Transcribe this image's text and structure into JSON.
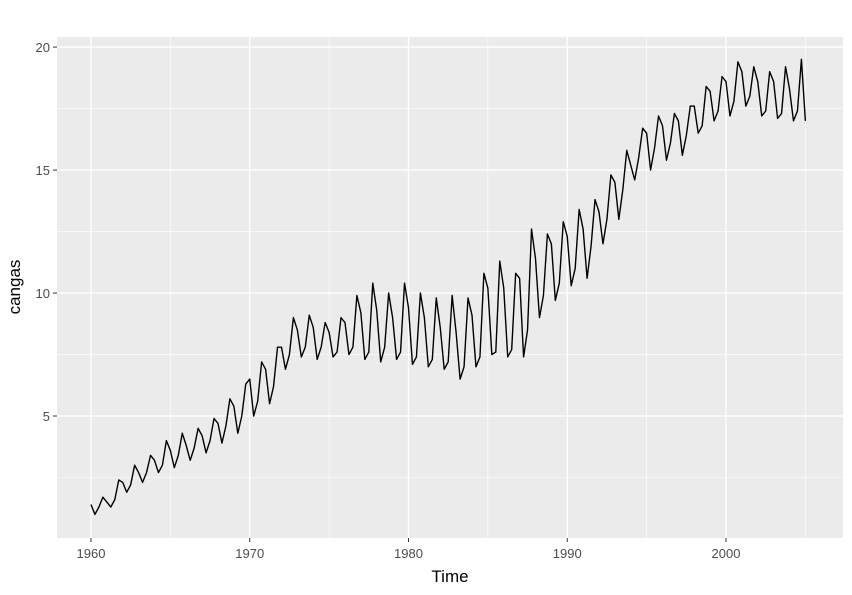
{
  "chart_data": {
    "type": "line",
    "xlabel": "Time",
    "ylabel": "cangas",
    "x": [
      1960,
      1960.25,
      1960.5,
      1960.75,
      1961,
      1961.25,
      1961.5,
      1961.75,
      1962,
      1962.25,
      1962.5,
      1962.75,
      1963,
      1963.25,
      1963.5,
      1963.75,
      1964,
      1964.25,
      1964.5,
      1964.75,
      1965,
      1965.25,
      1965.5,
      1965.75,
      1966,
      1966.25,
      1966.5,
      1966.75,
      1967,
      1967.25,
      1967.5,
      1967.75,
      1968,
      1968.25,
      1968.5,
      1968.75,
      1969,
      1969.25,
      1969.5,
      1969.75,
      1970,
      1970.25,
      1970.5,
      1970.75,
      1971,
      1971.25,
      1971.5,
      1971.75,
      1972,
      1972.25,
      1972.5,
      1972.75,
      1973,
      1973.25,
      1973.5,
      1973.75,
      1974,
      1974.25,
      1974.5,
      1974.75,
      1975,
      1975.25,
      1975.5,
      1975.75,
      1976,
      1976.25,
      1976.5,
      1976.75,
      1977,
      1977.25,
      1977.5,
      1977.75,
      1978,
      1978.25,
      1978.5,
      1978.75,
      1979,
      1979.25,
      1979.5,
      1979.75,
      1980,
      1980.25,
      1980.5,
      1980.75,
      1981,
      1981.25,
      1981.5,
      1981.75,
      1982,
      1982.25,
      1982.5,
      1982.75,
      1983,
      1983.25,
      1983.5,
      1983.75,
      1984,
      1984.25,
      1984.5,
      1984.75,
      1985,
      1985.25,
      1985.5,
      1985.75,
      1986,
      1986.25,
      1986.5,
      1986.75,
      1987,
      1987.25,
      1987.5,
      1987.75,
      1988,
      1988.25,
      1988.5,
      1988.75,
      1989,
      1989.25,
      1989.5,
      1989.75,
      1990,
      1990.25,
      1990.5,
      1990.75,
      1991,
      1991.25,
      1991.5,
      1991.75,
      1992,
      1992.25,
      1992.5,
      1992.75,
      1993,
      1993.25,
      1993.5,
      1993.75,
      1994,
      1994.25,
      1994.5,
      1994.75,
      1995,
      1995.25,
      1995.5,
      1995.75,
      1996,
      1996.25,
      1996.5,
      1996.75,
      1997,
      1997.25,
      1997.5,
      1997.75,
      1998,
      1998.25,
      1998.5,
      1998.75,
      1999,
      1999.25,
      1999.5,
      1999.75,
      2000,
      2000.25,
      2000.5,
      2000.75,
      2001,
      2001.25,
      2001.5,
      2001.75,
      2002,
      2002.25,
      2002.5,
      2002.75,
      2003,
      2003.25,
      2003.5,
      2003.75,
      2004,
      2004.25,
      2004.5,
      2004.75,
      2005
    ],
    "series": [
      {
        "name": "cangas",
        "color": "#000000",
        "values": [
          1.4,
          1.0,
          1.3,
          1.7,
          1.5,
          1.3,
          1.6,
          2.4,
          2.3,
          1.9,
          2.2,
          3.0,
          2.7,
          2.3,
          2.7,
          3.4,
          3.2,
          2.7,
          3.0,
          4.0,
          3.6,
          2.9,
          3.4,
          4.3,
          3.8,
          3.2,
          3.7,
          4.5,
          4.2,
          3.5,
          4.0,
          4.9,
          4.7,
          3.9,
          4.6,
          5.7,
          5.4,
          4.3,
          5.0,
          6.3,
          6.5,
          5.0,
          5.6,
          7.2,
          6.9,
          5.5,
          6.2,
          7.8,
          7.8,
          6.9,
          7.5,
          9.0,
          8.5,
          7.4,
          7.8,
          9.1,
          8.6,
          7.3,
          7.8,
          8.8,
          8.4,
          7.4,
          7.6,
          9.0,
          8.8,
          7.5,
          7.8,
          9.9,
          9.2,
          7.3,
          7.6,
          10.4,
          9.3,
          7.2,
          7.8,
          10.0,
          9.0,
          7.3,
          7.6,
          10.4,
          9.4,
          7.1,
          7.4,
          10.0,
          9.0,
          7.0,
          7.3,
          9.8,
          8.6,
          6.9,
          7.2,
          9.9,
          8.4,
          6.5,
          7.0,
          9.8,
          9.1,
          7.0,
          7.4,
          10.8,
          10.2,
          7.5,
          7.6,
          11.3,
          10.2,
          7.4,
          7.7,
          10.8,
          10.6,
          7.4,
          8.5,
          12.6,
          11.4,
          9.0,
          9.9,
          12.4,
          12.0,
          9.7,
          10.4,
          12.9,
          12.3,
          10.3,
          11.0,
          13.4,
          12.6,
          10.6,
          11.9,
          13.8,
          13.3,
          12.0,
          13.0,
          14.8,
          14.5,
          13.0,
          14.2,
          15.8,
          15.2,
          14.6,
          15.5,
          16.7,
          16.5,
          15.0,
          15.9,
          17.2,
          16.8,
          15.4,
          16.1,
          17.3,
          17.0,
          15.6,
          16.4,
          17.6,
          17.6,
          16.5,
          16.8,
          18.4,
          18.2,
          17.0,
          17.4,
          18.8,
          18.6,
          17.2,
          17.8,
          19.4,
          19.0,
          17.6,
          18.0,
          19.2,
          18.6,
          17.2,
          17.4,
          19.0,
          18.6,
          17.1,
          17.3,
          19.2,
          18.3,
          17.0,
          17.4,
          19.5,
          17.0
        ]
      }
    ],
    "xlim": [
      1957.86,
      2007.37
    ],
    "xticks": [
      1960,
      1970,
      1980,
      1990,
      2000
    ],
    "ylim": [
      0.04,
      20.41
    ],
    "yticks": [
      5,
      10,
      15,
      20
    ],
    "grid": true,
    "minor_grid": true,
    "panel_color": "#ebebeb"
  }
}
